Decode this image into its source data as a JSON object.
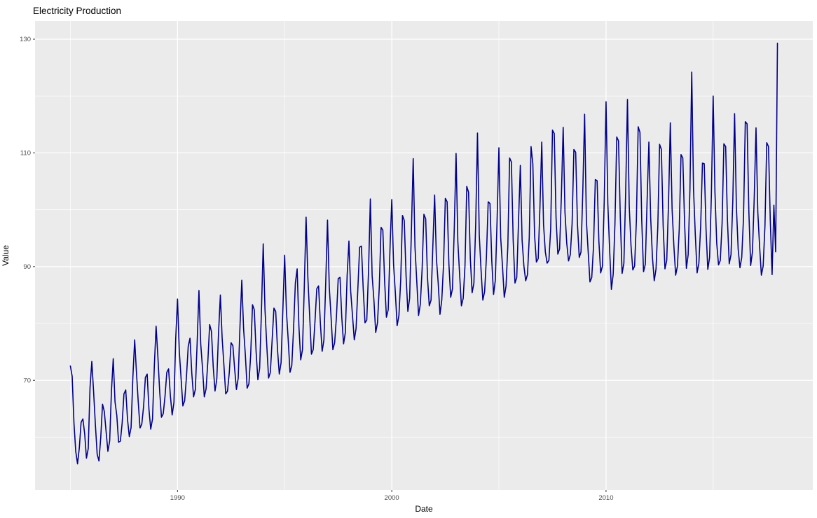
{
  "chart_data": {
    "type": "line",
    "title": "Electricity Production",
    "xlabel": "Date",
    "ylabel": "Value",
    "legend": "none",
    "grid": "on",
    "panel_bg_color": "#EBEBEB",
    "grid_color": "#FFFFFF",
    "line_color": "#00008B",
    "tick_label_color": "#4d4d4d",
    "tick_mark_color": "#333333",
    "x_axis": {
      "major_ticks": [
        1990,
        2000,
        2010
      ],
      "major_tick_labels": [
        "1990",
        "2000",
        "2010"
      ],
      "minor_gridlines": [
        1985,
        1995,
        2005,
        2015
      ],
      "range": [
        1983.35,
        2019.65
      ]
    },
    "y_axis": {
      "major_ticks": [
        70,
        90,
        110,
        130
      ],
      "major_tick_labels": [
        "70",
        "90",
        "110",
        "130"
      ],
      "minor_gridlines": [
        60,
        80,
        100,
        120
      ],
      "range": [
        50.7,
        133.2
      ]
    },
    "series": [
      {
        "name": "Value",
        "start_year": 1985,
        "start_month": 1,
        "frequency": "monthly",
        "values": [
          72.5,
          70.7,
          62.5,
          57.5,
          55.3,
          58.1,
          62.6,
          63.2,
          60.6,
          56.3,
          58.0,
          68.7,
          73.3,
          68.0,
          62.2,
          57.0,
          55.8,
          59.9,
          65.8,
          64.5,
          61.0,
          57.5,
          59.3,
          68.1,
          73.8,
          66.2,
          63.8,
          59.1,
          59.3,
          62.5,
          67.6,
          68.3,
          63.1,
          60.1,
          61.7,
          70.6,
          77.1,
          71.4,
          66.2,
          61.6,
          62.3,
          65.4,
          70.5,
          71.1,
          64.9,
          61.4,
          63.2,
          72.4,
          79.5,
          74.2,
          68.1,
          63.5,
          64.1,
          67.2,
          71.4,
          72.0,
          67.3,
          63.9,
          66.1,
          77.4,
          84.3,
          75.1,
          70.3,
          65.5,
          66.4,
          70.6,
          76.0,
          77.4,
          71.2,
          67.1,
          68.4,
          76.6,
          85.8,
          76.4,
          72.1,
          67.1,
          68.5,
          73.4,
          79.8,
          78.6,
          72.4,
          68.1,
          70.2,
          78.5,
          85.0,
          77.4,
          72.6,
          67.6,
          68.1,
          71.4,
          76.6,
          76.1,
          72.0,
          68.4,
          70.4,
          79.6,
          87.6,
          79.1,
          74.4,
          68.6,
          69.4,
          74.6,
          83.3,
          82.4,
          75.1,
          70.1,
          72.1,
          82.1,
          94.0,
          82.4,
          76.1,
          70.4,
          71.4,
          77.1,
          82.7,
          82.1,
          75.4,
          71.1,
          73.1,
          82.4,
          92.0,
          82.1,
          77.1,
          71.4,
          72.6,
          79.1,
          87.1,
          89.6,
          79.4,
          73.6,
          75.4,
          86.4,
          98.7,
          88.1,
          81.4,
          74.6,
          75.4,
          80.4,
          86.1,
          86.6,
          80.1,
          75.1,
          77.1,
          87.1,
          98.2,
          86.4,
          81.1,
          75.4,
          76.6,
          81.1,
          87.9,
          88.1,
          81.1,
          76.4,
          78.4,
          88.4,
          94.5,
          85.6,
          81.4,
          77.1,
          79.1,
          86.1,
          93.4,
          93.6,
          86.1,
          80.1,
          80.6,
          89.4,
          101.9,
          88.4,
          84.1,
          78.4,
          80.1,
          86.4,
          96.9,
          96.4,
          87.4,
          81.1,
          82.4,
          93.1,
          101.8,
          90.4,
          85.4,
          79.6,
          81.4,
          87.6,
          99.0,
          98.1,
          88.4,
          82.1,
          84.4,
          96.4,
          109.0,
          93.4,
          87.4,
          81.4,
          83.4,
          89.6,
          99.2,
          98.4,
          88.1,
          83.1,
          84.1,
          93.6,
          102.6,
          91.4,
          87.1,
          81.6,
          84.1,
          90.4,
          102.0,
          101.4,
          90.4,
          84.6,
          86.1,
          96.6,
          109.9,
          94.4,
          88.6,
          83.1,
          84.4,
          90.1,
          104.1,
          103.1,
          91.4,
          85.4,
          87.1,
          97.4,
          113.5,
          95.6,
          89.4,
          84.1,
          85.6,
          91.6,
          101.4,
          101.1,
          91.1,
          85.1,
          87.6,
          98.4,
          110.9,
          95.1,
          90.1,
          84.6,
          86.6,
          93.6,
          109.1,
          108.4,
          94.6,
          87.1,
          88.1,
          98.1,
          107.8,
          94.6,
          90.1,
          87.5,
          88.6,
          95.1,
          111.1,
          108.1,
          95.4,
          90.8,
          91.4,
          100.6,
          111.9,
          97.4,
          92.6,
          90.6,
          91.1,
          96.6,
          114.0,
          113.4,
          98.6,
          92.2,
          93.1,
          102.6,
          114.5,
          99.6,
          94.1,
          91.0,
          92.1,
          97.6,
          110.6,
          110.1,
          97.4,
          91.6,
          92.6,
          103.4,
          116.8,
          98.1,
          92.6,
          87.3,
          88.1,
          93.6,
          105.3,
          105.1,
          94.4,
          88.9,
          90.1,
          101.6,
          119.0,
          101.1,
          93.1,
          86.0,
          88.6,
          97.6,
          112.8,
          112.1,
          98.6,
          88.8,
          90.6,
          103.1,
          119.4,
          100.6,
          93.6,
          89.4,
          90.1,
          98.1,
          114.6,
          113.6,
          98.1,
          89.1,
          90.4,
          101.6,
          111.9,
          98.6,
          91.6,
          87.5,
          89.6,
          97.1,
          111.5,
          110.6,
          97.1,
          89.6,
          91.1,
          101.1,
          115.3,
          100.1,
          93.6,
          88.5,
          90.1,
          96.6,
          109.7,
          109.1,
          97.6,
          89.7,
          92.1,
          103.6,
          124.2,
          103.6,
          95.6,
          88.9,
          90.6,
          97.1,
          108.2,
          108.1,
          96.6,
          89.5,
          91.6,
          102.6,
          120.0,
          103.1,
          94.1,
          90.3,
          91.1,
          97.6,
          111.6,
          111.1,
          98.1,
          90.5,
          92.1,
          101.6,
          116.9,
          100.6,
          93.1,
          89.8,
          91.6,
          98.6,
          115.5,
          115.1,
          99.6,
          90.2,
          92.6,
          102.1,
          114.4,
          99.6,
          93.6,
          88.5,
          90.1,
          97.1,
          111.8,
          111.1,
          98.0,
          88.6,
          100.8,
          92.6,
          129.3
        ]
      }
    ]
  }
}
